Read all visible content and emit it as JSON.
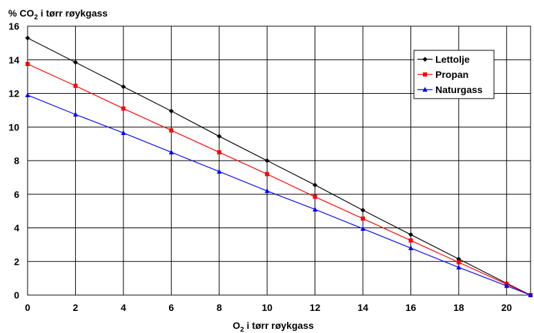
{
  "chart_data": {
    "type": "line",
    "ylabel": {
      "prefix": "% CO",
      "sub": "2",
      "suffix": " i tørr røykgass"
    },
    "xlabel": {
      "prefix": "O",
      "sub": "2",
      "suffix": " i tørr røykgass"
    },
    "xlim": [
      0,
      21
    ],
    "ylim": [
      0,
      16
    ],
    "x_ticks": [
      0,
      2,
      4,
      6,
      8,
      10,
      12,
      14,
      16,
      18,
      20
    ],
    "y_ticks": [
      0,
      2,
      4,
      6,
      8,
      10,
      12,
      14,
      16
    ],
    "grid": true,
    "legend_position": "top-right",
    "x": [
      0,
      2,
      4,
      6,
      8,
      10,
      12,
      14,
      16,
      18,
      20,
      21
    ],
    "series": [
      {
        "name": "Lettolje",
        "color": "#000000",
        "marker": "diamond",
        "values": [
          15.3,
          13.85,
          12.4,
          10.95,
          9.45,
          8.0,
          6.55,
          5.05,
          3.6,
          2.15,
          0.7,
          0.0
        ]
      },
      {
        "name": "Propan",
        "color": "#ff0000",
        "marker": "square",
        "values": [
          13.75,
          12.45,
          11.1,
          9.8,
          8.5,
          7.2,
          5.85,
          4.55,
          3.25,
          1.95,
          0.65,
          0.0
        ]
      },
      {
        "name": "Naturgass",
        "color": "#0000ff",
        "marker": "triangle",
        "values": [
          11.9,
          10.75,
          9.65,
          8.5,
          7.35,
          6.2,
          5.1,
          3.95,
          2.8,
          1.65,
          0.55,
          0.0
        ]
      }
    ]
  }
}
